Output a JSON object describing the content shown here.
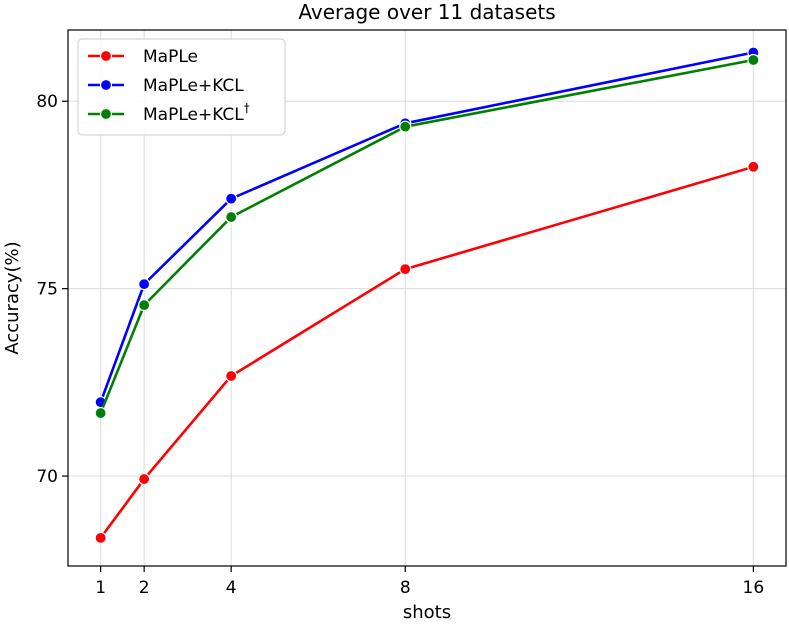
{
  "chart_data": {
    "type": "line",
    "title": "Average over 11 datasets",
    "xlabel": "shots",
    "ylabel": "Accuracy(%)",
    "x": [
      1,
      2,
      4,
      8,
      16
    ],
    "x_ticks": [
      "1",
      "2",
      "4",
      "8",
      "16"
    ],
    "y_ticks": [
      70,
      75,
      80
    ],
    "y_tick_labels": [
      "70",
      "75",
      "80"
    ],
    "xlim": [
      0.25,
      16.75
    ],
    "ylim": [
      67.6,
      81.9
    ],
    "grid": true,
    "legend_position": "top-left",
    "series": [
      {
        "name": "MaPLe",
        "color": "#ff0000",
        "values": [
          68.35,
          69.92,
          72.67,
          75.52,
          78.25
        ]
      },
      {
        "name": "MaPLe+KCL",
        "color": "#0000ff",
        "values": [
          71.97,
          75.12,
          77.4,
          79.41,
          81.3
        ]
      },
      {
        "name": "MaPLe+KCL",
        "name_suffix": "†",
        "color": "#008000",
        "values": [
          71.68,
          74.56,
          76.91,
          79.32,
          81.1
        ]
      }
    ]
  }
}
